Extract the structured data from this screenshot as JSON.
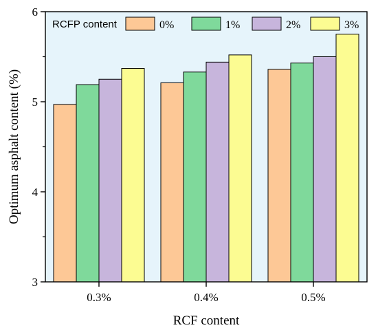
{
  "chart_data": {
    "type": "bar",
    "xlabel": "RCF content",
    "ylabel": "Optimum asphalt content (%)",
    "categories": [
      "0.3%",
      "0.4%",
      "0.5%"
    ],
    "ylim": [
      3,
      6
    ],
    "yticks": [
      "3",
      "4",
      "5",
      "6"
    ],
    "legend_title": "RCFP content",
    "legend_position": "top",
    "grid": false,
    "series": [
      {
        "name": "0%",
        "color": "#fdc896",
        "values": [
          4.97,
          5.21,
          5.36
        ]
      },
      {
        "name": "1%",
        "color": "#7fd99b",
        "values": [
          5.19,
          5.33,
          5.43
        ]
      },
      {
        "name": "2%",
        "color": "#c7b5dc",
        "values": [
          5.25,
          5.44,
          5.5
        ]
      },
      {
        "name": "3%",
        "color": "#fcfc92",
        "values": [
          5.37,
          5.52,
          5.75
        ]
      }
    ],
    "plot_background": "#e6f4fb"
  }
}
